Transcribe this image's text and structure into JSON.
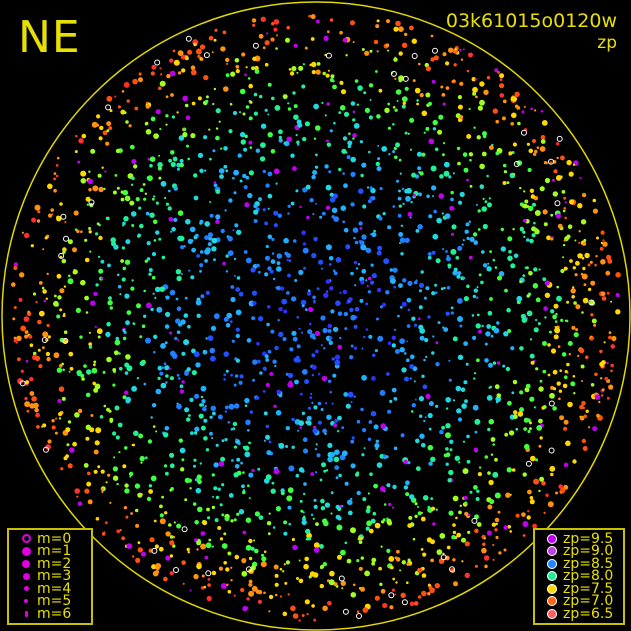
{
  "header": {
    "direction": "NE",
    "frame_id": "03k61015o0120w",
    "mode": "zp"
  },
  "magnitude_legend": [
    {
      "label": "m=0",
      "size": 9,
      "hollow": true
    },
    {
      "label": "m=1",
      "size": 9,
      "hollow": false
    },
    {
      "label": "m=2",
      "size": 8,
      "hollow": false
    },
    {
      "label": "m=3",
      "size": 7,
      "hollow": false
    },
    {
      "label": "m=4",
      "size": 5,
      "hollow": false
    },
    {
      "label": "m=5",
      "size": 4,
      "hollow": false
    },
    {
      "label": "m=6",
      "size": 3,
      "hollow": false
    }
  ],
  "zp_legend": [
    {
      "label": "zp=9.5",
      "color": "#c000f0"
    },
    {
      "label": "zp=9.0",
      "color": "#c040e0"
    },
    {
      "label": "zp=8.5",
      "color": "#2088ff"
    },
    {
      "label": "zp=8.0",
      "color": "#20f098"
    },
    {
      "label": "zp=7.5",
      "color": "#ffd800"
    },
    {
      "label": "zp=7.0",
      "color": "#ff6810"
    },
    {
      "label": "zp=6.5",
      "color": "#ff6060"
    }
  ],
  "colors": {
    "circle": "#e0d800",
    "text": "#e8e000",
    "background": "#000000"
  }
}
